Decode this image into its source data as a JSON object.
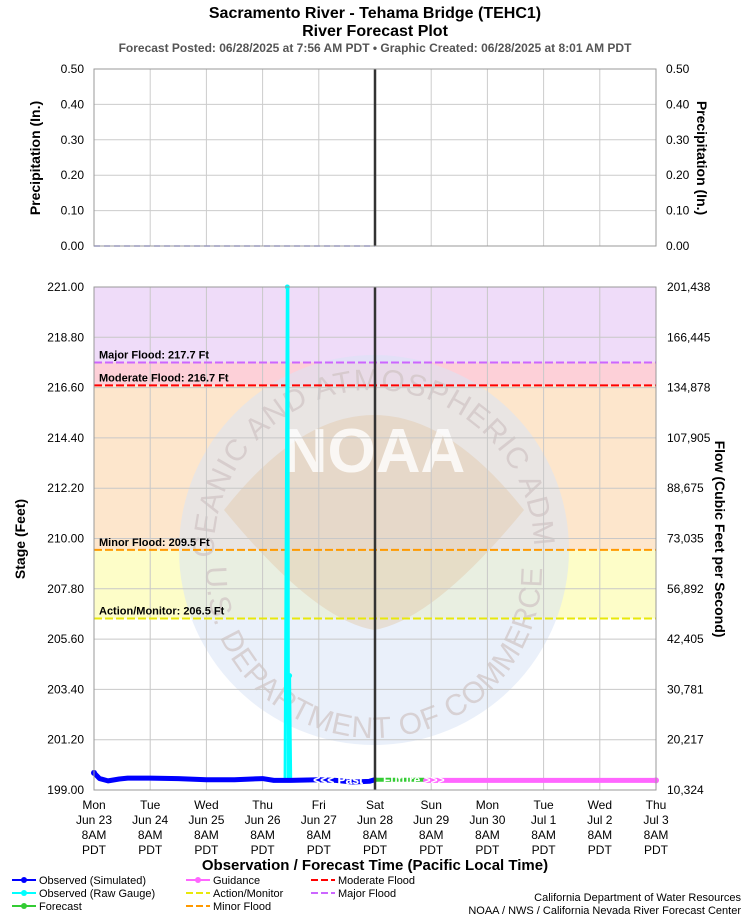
{
  "header": {
    "title": "Sacramento River - Tehama Bridge (TEHC1)",
    "subtitle": "River Forecast Plot",
    "posted": "Forecast Posted: 06/28/2025 at 7:56 AM PDT  •  Graphic Created: 06/28/2025 at 8:01 AM PDT"
  },
  "chart_data": [
    {
      "type": "line",
      "title": "Precipitation",
      "ylabel_left": "Precipitation (In.)",
      "ylabel_right": "Precipitation (In.)",
      "ylim": [
        0,
        0.5
      ],
      "yticks": [
        "0.00",
        "0.10",
        "0.20",
        "0.30",
        "0.40",
        "0.50"
      ],
      "grid": true,
      "series": [
        {
          "values_x": [
            0,
            5
          ],
          "values_y": [
            0,
            0
          ],
          "color": "#9999ff"
        }
      ]
    },
    {
      "type": "line",
      "xlabel": "Observation / Forecast Time (Pacific Local Time)",
      "ylabel_left": "Stage (Feet)",
      "ylabel_right": "Flow (Cubic Feet per Second)",
      "ylim": [
        199.0,
        221.0
      ],
      "yticks_left": [
        "199.00",
        "201.20",
        "203.40",
        "205.60",
        "207.80",
        "210.00",
        "212.20",
        "214.40",
        "216.60",
        "218.80",
        "221.00"
      ],
      "yticks_right": [
        "10,324",
        "20,217",
        "30,781",
        "42,405",
        "56,892",
        "73,035",
        "88,675",
        "107,905",
        "134,878",
        "166,445",
        "201,438"
      ],
      "xtick_labels": [
        [
          "Mon",
          "Jun 23",
          "8AM",
          "PDT"
        ],
        [
          "Tue",
          "Jun 24",
          "8AM",
          "PDT"
        ],
        [
          "Wed",
          "Jun 25",
          "8AM",
          "PDT"
        ],
        [
          "Thu",
          "Jun 26",
          "8AM",
          "PDT"
        ],
        [
          "Fri",
          "Jun 27",
          "8AM",
          "PDT"
        ],
        [
          "Sat",
          "Jun 28",
          "8AM",
          "PDT"
        ],
        [
          "Sun",
          "Jun 29",
          "8AM",
          "PDT"
        ],
        [
          "Mon",
          "Jun 30",
          "8AM",
          "PDT"
        ],
        [
          "Tue",
          "Jul 1",
          "8AM",
          "PDT"
        ],
        [
          "Wed",
          "Jul 2",
          "8AM",
          "PDT"
        ],
        [
          "Thu",
          "Jul 3",
          "8AM",
          "PDT"
        ]
      ],
      "now_day": 5,
      "grid": true,
      "flood_zones": [
        {
          "from": 217.7,
          "to": 221.0,
          "color": "#efdcf9"
        },
        {
          "from": 216.7,
          "to": 217.7,
          "color": "#fdd0d8"
        },
        {
          "from": 209.5,
          "to": 216.7,
          "color": "#fde6cc"
        },
        {
          "from": 206.5,
          "to": 209.5,
          "color": "#fdfdc8"
        }
      ],
      "thresholds": [
        {
          "label": "Major Flood: 217.7 Ft",
          "value": 217.7,
          "color": "#cc66ff"
        },
        {
          "label": "Moderate Flood: 216.7 Ft",
          "value": 216.7,
          "color": "#ff0000"
        },
        {
          "label": "Minor Flood: 209.5 Ft",
          "value": 209.5,
          "color": "#ff9900"
        },
        {
          "label": "Action/Monitor: 206.5 Ft",
          "value": 206.5,
          "color": "#e8e80a"
        }
      ],
      "series": [
        {
          "name": "Observed (Simulated)",
          "color": "#0000ff",
          "x": [
            0,
            0.1,
            0.25,
            0.45,
            0.6,
            1.0,
            1.5,
            2.0,
            2.5,
            3.0,
            3.2,
            3.5,
            4.0,
            4.3,
            4.6,
            4.9,
            5.0
          ],
          "y": [
            199.75,
            199.5,
            199.4,
            199.48,
            199.52,
            199.52,
            199.5,
            199.45,
            199.45,
            199.5,
            199.42,
            199.42,
            199.45,
            199.42,
            199.35,
            199.38,
            199.45
          ]
        },
        {
          "name": "Observed (Raw Gauge)",
          "color": "#00ffff",
          "x": [
            3.4,
            3.44,
            3.45,
            3.46,
            3.48,
            3.5
          ],
          "y": [
            199.42,
            221.0,
            221.0,
            199.42,
            204.0,
            199.42
          ]
        },
        {
          "name": "Forecast",
          "color": "#33cc33",
          "x": [
            5.0,
            5.9
          ],
          "y": [
            199.45,
            199.45
          ]
        },
        {
          "name": "Guidance",
          "color": "#ff66ff",
          "x": [
            5.9,
            10.0
          ],
          "y": [
            199.42,
            199.42
          ]
        }
      ],
      "past_label": "<<< Past",
      "future_label": "Future >>>"
    }
  ],
  "watermark": {
    "ring_text_top": "NATIONAL OCEANIC AND ATMOSPHERIC ADMINISTRATION",
    "ring_text_bottom": "U.S. DEPARTMENT OF COMMERCE",
    "center": "NOAA"
  },
  "legend": {
    "items": [
      {
        "label": "Observed (Simulated)",
        "color": "#0000ff",
        "style": "marker"
      },
      {
        "label": "Observed (Raw Gauge)",
        "color": "#00ffff",
        "style": "marker"
      },
      {
        "label": "Forecast",
        "color": "#33cc33",
        "style": "marker"
      },
      {
        "label": "Guidance",
        "color": "#ff66ff",
        "style": "marker"
      },
      {
        "label": "Action/Monitor",
        "color": "#e8e80a",
        "style": "dash"
      },
      {
        "label": "Minor Flood",
        "color": "#ff9900",
        "style": "dash"
      },
      {
        "label": "Moderate Flood",
        "color": "#ff0000",
        "style": "dash"
      },
      {
        "label": "Major Flood",
        "color": "#cc66ff",
        "style": "dash"
      }
    ]
  },
  "credits": {
    "line1": "California Department of Water Resources",
    "line2": "NOAA / NWS / California Nevada River Forecast Center"
  }
}
